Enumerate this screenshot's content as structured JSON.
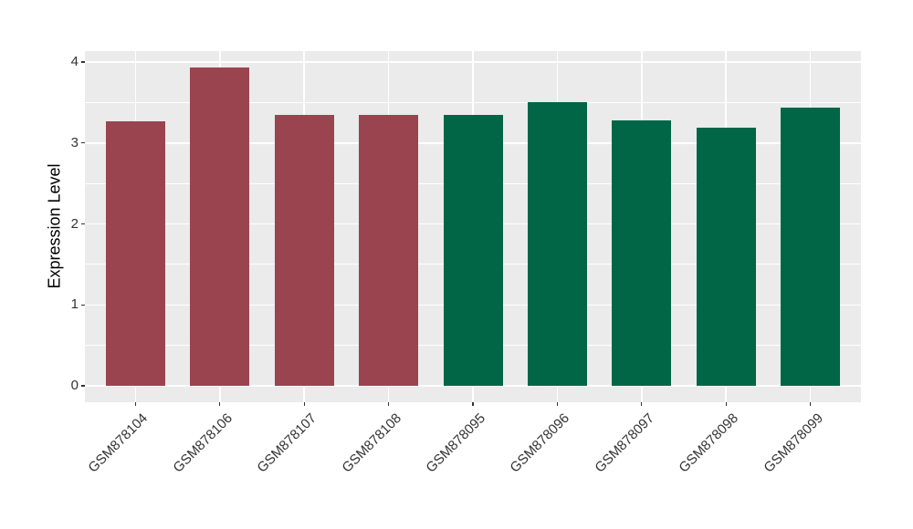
{
  "chart_data": {
    "type": "bar",
    "title": "",
    "xlabel": "",
    "ylabel": "Expression Level",
    "categories": [
      "GSM878104",
      "GSM878106",
      "GSM878107",
      "GSM878108",
      "GSM878095",
      "GSM878096",
      "GSM878097",
      "GSM878098",
      "GSM878099"
    ],
    "values": [
      3.27,
      3.93,
      3.35,
      3.35,
      3.35,
      3.5,
      3.28,
      3.19,
      3.44
    ],
    "groups": [
      "group1",
      "group1",
      "group1",
      "group1",
      "group2",
      "group2",
      "group2",
      "group2",
      "group2"
    ],
    "group_colors": {
      "group1": "#9A4450",
      "group2": "#006646"
    },
    "yticks": [
      "0",
      "1",
      "2",
      "3",
      "4"
    ],
    "ytick_values": [
      0,
      1,
      2,
      3,
      4
    ],
    "minor_ytick_values": [
      0.5,
      1.5,
      2.5,
      3.5
    ],
    "ylim": [
      -0.2,
      4.14
    ],
    "grid": "on",
    "legend_position": "none",
    "panel_bg": "#EBEBEB",
    "grid_color": "#FFFFFF",
    "tick_color": "#333333",
    "text_color": "#333333"
  }
}
